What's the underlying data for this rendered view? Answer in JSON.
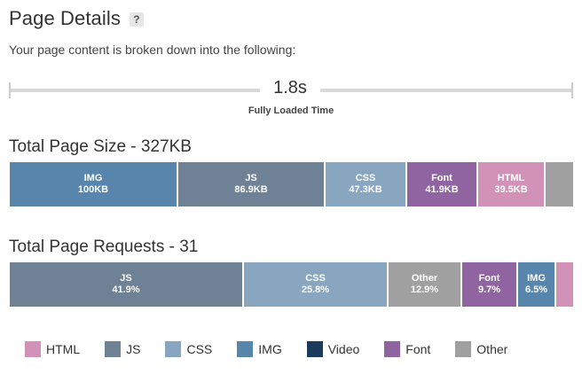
{
  "header": {
    "title": "Page Details",
    "help_label": "?",
    "intro": "Your page content is broken down into the following:"
  },
  "timeline": {
    "value": "1.8s",
    "label": "Fully Loaded Time"
  },
  "colors": {
    "HTML": "#d291b6",
    "JS": "#6f8295",
    "CSS": "#88a6bf",
    "IMG": "#5785ab",
    "Video": "#1a3b5e",
    "Font": "#9064a0",
    "Other": "#a0a0a0"
  },
  "size_section": {
    "heading": "Total Page Size - 327KB",
    "segments": [
      {
        "type": "IMG",
        "label": "IMG",
        "value": "100KB",
        "fraction": 0.3
      },
      {
        "type": "JS",
        "label": "JS",
        "value": "86.9KB",
        "fraction": 0.262
      },
      {
        "type": "CSS",
        "label": "CSS",
        "value": "47.3KB",
        "fraction": 0.144
      },
      {
        "type": "Font",
        "label": "Font",
        "value": "41.9KB",
        "fraction": 0.125
      },
      {
        "type": "HTML",
        "label": "HTML",
        "value": "39.5KB",
        "fraction": 0.119
      },
      {
        "type": "Other",
        "label": "",
        "value": "",
        "fraction": 0.038
      }
    ]
  },
  "requests_section": {
    "heading": "Total Page Requests - 31",
    "segments": [
      {
        "type": "JS",
        "label": "JS",
        "value": "41.9%",
        "fraction": 0.419
      },
      {
        "type": "CSS",
        "label": "CSS",
        "value": "25.8%",
        "fraction": 0.258
      },
      {
        "type": "Other",
        "label": "Other",
        "value": "12.9%",
        "fraction": 0.129
      },
      {
        "type": "Font",
        "label": "Font",
        "value": "9.7%",
        "fraction": 0.097
      },
      {
        "type": "IMG",
        "label": "IMG",
        "value": "6.5%",
        "fraction": 0.065
      },
      {
        "type": "HTML",
        "label": "",
        "value": "",
        "fraction": 0.032
      }
    ]
  },
  "legend": [
    {
      "type": "HTML",
      "label": "HTML"
    },
    {
      "type": "JS",
      "label": "JS"
    },
    {
      "type": "CSS",
      "label": "CSS"
    },
    {
      "type": "IMG",
      "label": "IMG"
    },
    {
      "type": "Video",
      "label": "Video"
    },
    {
      "type": "Font",
      "label": "Font"
    },
    {
      "type": "Other",
      "label": "Other"
    }
  ]
}
